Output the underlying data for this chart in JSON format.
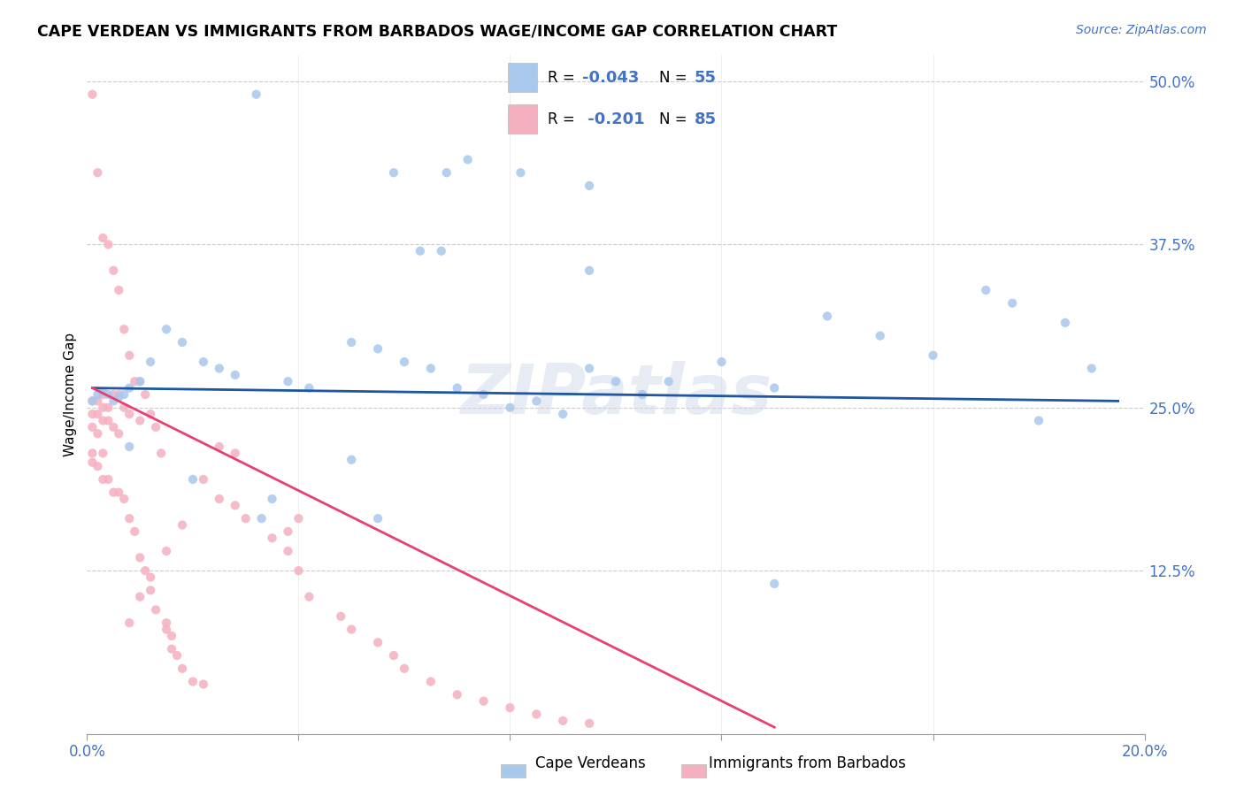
{
  "title": "CAPE VERDEAN VS IMMIGRANTS FROM BARBADOS WAGE/INCOME GAP CORRELATION CHART",
  "source": "Source: ZipAtlas.com",
  "ylabel": "Wage/Income Gap",
  "xmin": 0.0,
  "xmax": 0.2,
  "ymin": 0.0,
  "ymax": 0.52,
  "blue_color": "#A8C8EC",
  "pink_color": "#F5B0C0",
  "blue_line_color": "#1E56A0",
  "pink_line_color": "#E84070",
  "watermark": "ZIPatlas",
  "legend_label_blue": "Cape Verdeans",
  "legend_label_pink": "Immigrants from Barbados",
  "blue_trend_x": [
    0.001,
    0.195
  ],
  "blue_trend_y": [
    0.265,
    0.255
  ],
  "pink_trend_x": [
    0.001,
    0.13
  ],
  "pink_trend_y": [
    0.265,
    0.005
  ]
}
